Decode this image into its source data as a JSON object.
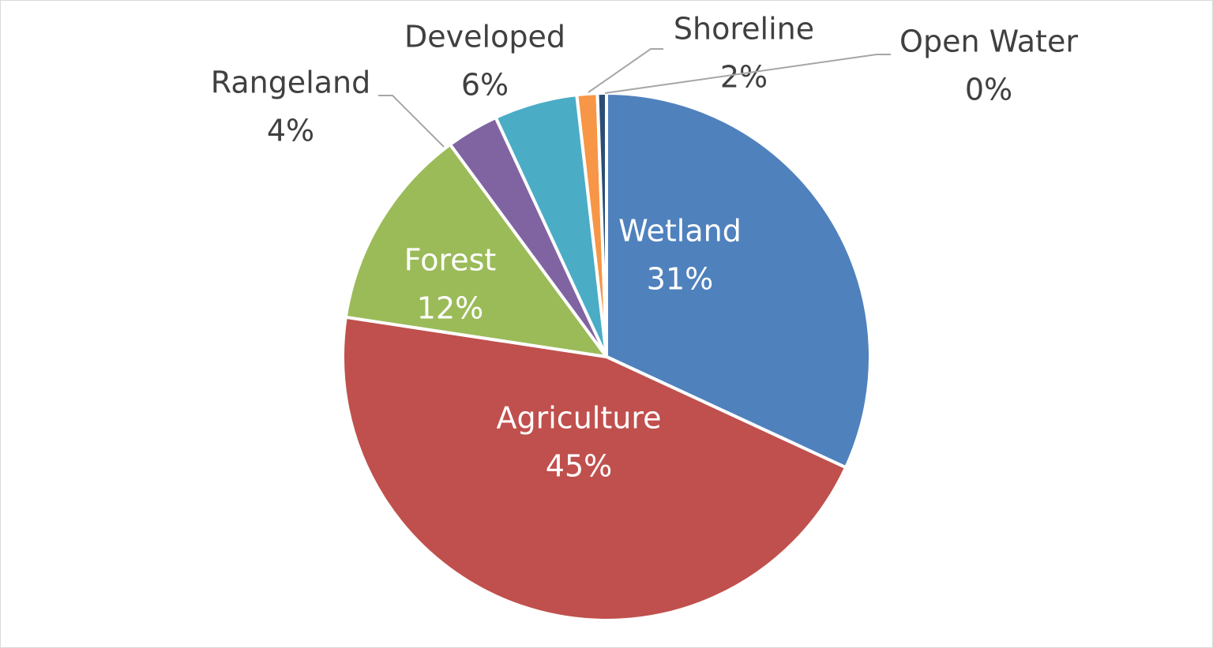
{
  "chart_data": {
    "type": "pie",
    "title": "",
    "slices": [
      {
        "label": "Wetland",
        "value": 31,
        "value_label": "31%",
        "color": "#4f81bd",
        "label_position": "inside"
      },
      {
        "label": "Agriculture",
        "value": 45,
        "value_label": "45%",
        "color": "#c0504d",
        "label_position": "inside"
      },
      {
        "label": "Forest",
        "value": 12,
        "value_label": "12%",
        "color": "#9bbb59",
        "label_position": "inside"
      },
      {
        "label": "Rangeland",
        "value": 4,
        "value_label": "4%",
        "color": "#8064a2",
        "label_position": "outside"
      },
      {
        "label": "Developed",
        "value": 6,
        "value_label": "6%",
        "color": "#4bacc6",
        "label_position": "outside"
      },
      {
        "label": "Shoreline",
        "value": 2,
        "value_label": "2%",
        "color": "#f79646",
        "label_position": "outside"
      },
      {
        "label": "Open Water",
        "value": 0,
        "value_label": "0%",
        "color": "#2c4d75",
        "label_position": "outside"
      }
    ],
    "start_direction": "top",
    "order": "clockwise",
    "legend": "none"
  }
}
